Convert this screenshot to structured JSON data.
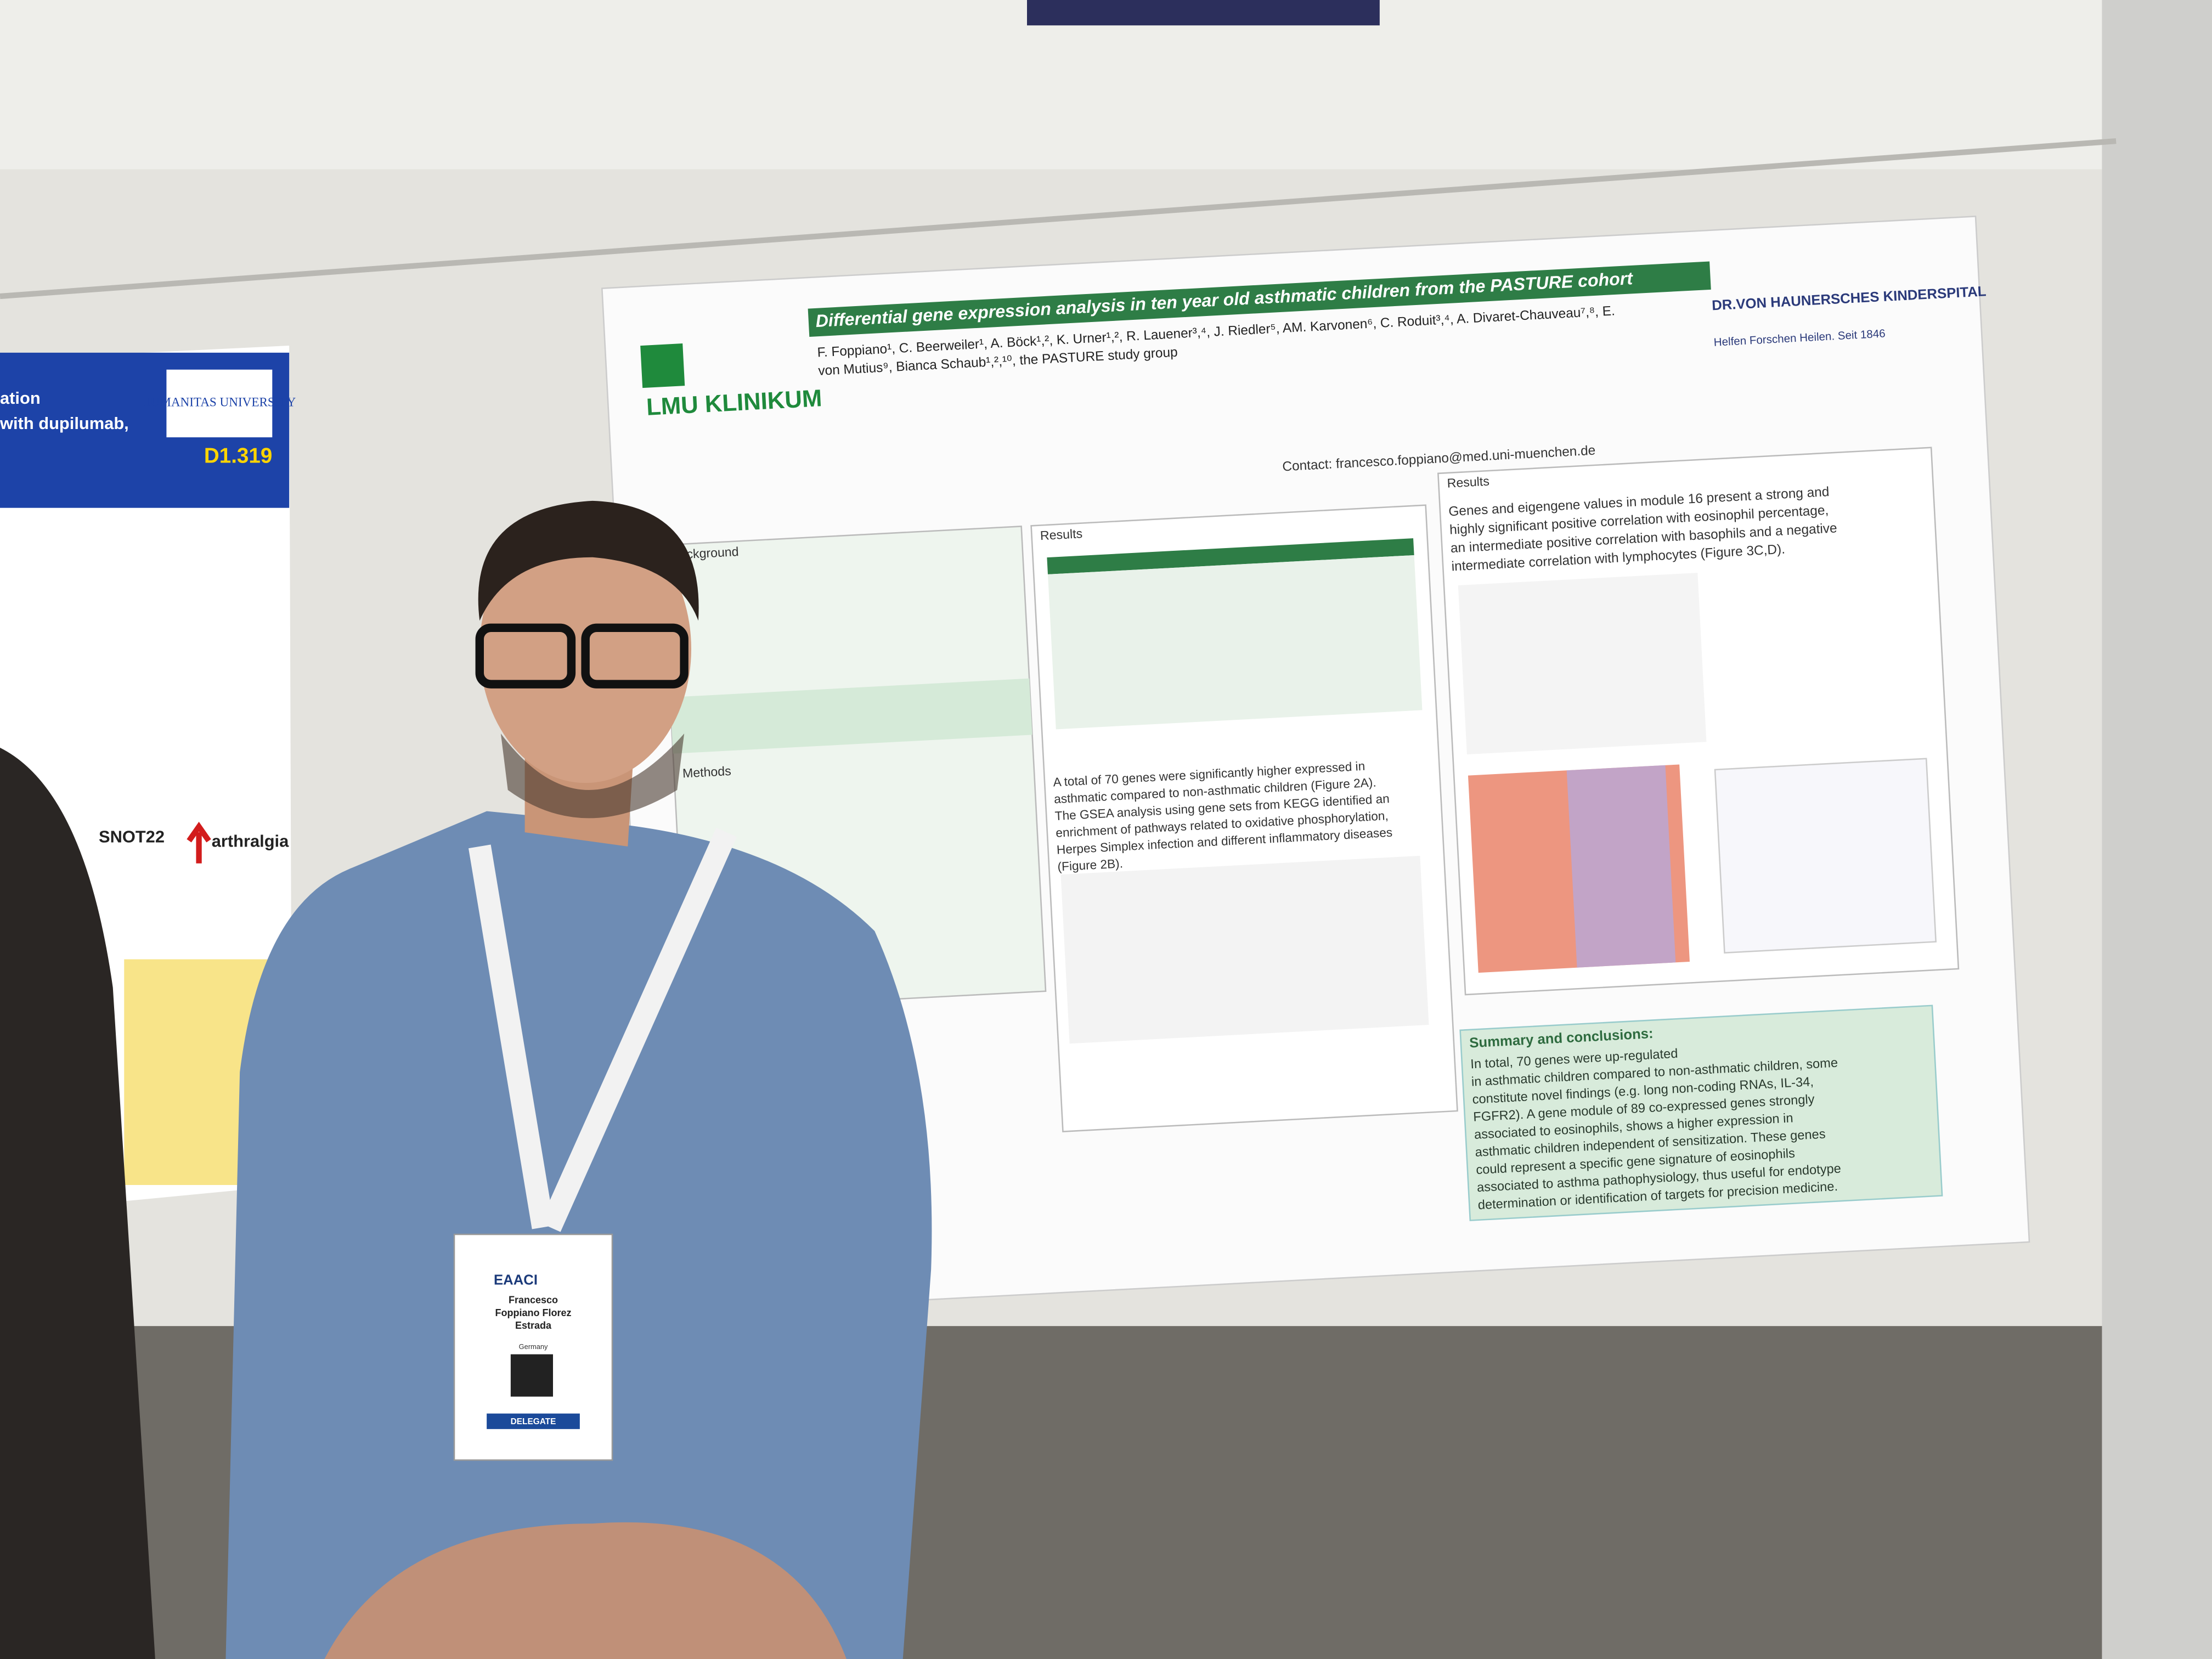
{
  "left_poster": {
    "title_lines": [
      "ation",
      "with dupilumab,"
    ],
    "university": "HUMANITAS UNIVERSITY",
    "code": "D1.319",
    "terms": [
      "SNOT22",
      "arthralgia"
    ]
  },
  "poster": {
    "title": "Differential gene expression analysis in ten year old asthmatic children from the PASTURE cohort",
    "logo_left": "LMU KLINIKUM",
    "logo_right_name": "DR.VON HAUNERSCHES KINDERSPITAL",
    "logo_right_motto": "Helfen Forschen Heilen. Seit 1846",
    "author_lines": [
      "F. Foppiano¹, C. Beerweiler¹, A. Böck¹,², K. Urner¹,², R. Lauener³,⁴, J. Riedler⁵, AM. Karvonen⁶, C. Roduit³,⁴, A. Divaret-Chauveau⁷,⁸, E.",
      "von Mutius⁹, Bianca Schaub¹,²,¹⁰, the PASTURE study group"
    ],
    "contact": "Contact: francesco.foppiano@med.uni-muenchen.de",
    "background_heading": "Background",
    "results_heading": "Results",
    "methods_heading": "Methods",
    "results_right_heading": "Results",
    "summary_heading": "Summary and conclusions:",
    "results_mid_lines": [
      "A total of 70 genes were significantly higher expressed in",
      "asthmatic compared to non-asthmatic children (Figure 2A).",
      "The GSEA analysis using gene sets from KEGG identified an",
      "enrichment of pathways related to oxidative phosphorylation,",
      "Herpes Simplex infection and different inflammatory diseases",
      "(Figure 2B)."
    ],
    "results_right_lines": [
      "Genes and eigengene values in module 16 present a strong and",
      "highly significant positive correlation with eosinophil percentage,",
      "an intermediate positive correlation with basophils and a negative",
      "intermediate correlation with lymphocytes (Figure 3C,D)."
    ],
    "summary_lines": [
      "In total, 70 genes were up-regulated",
      "in asthmatic children compared to non-asthmatic children, some",
      "constitute novel findings (e.g. long non-coding RNAs, IL-34,",
      "FGFR2). A gene module of 89 co-expressed genes strongly",
      "associated to eosinophils, shows a higher expression in",
      "asthmatic children independent of sensitization. These genes",
      "could represent a specific gene signature of eosinophils",
      "associated to asthma pathophysiology, thus useful for endotype",
      "determination or identification of targets for precision medicine."
    ]
  },
  "badge": {
    "event": "EAACI",
    "name_lines": [
      "Francesco",
      "Foppiano Florez",
      "Estrada"
    ],
    "country": "Germany",
    "role": "DELEGATE"
  }
}
